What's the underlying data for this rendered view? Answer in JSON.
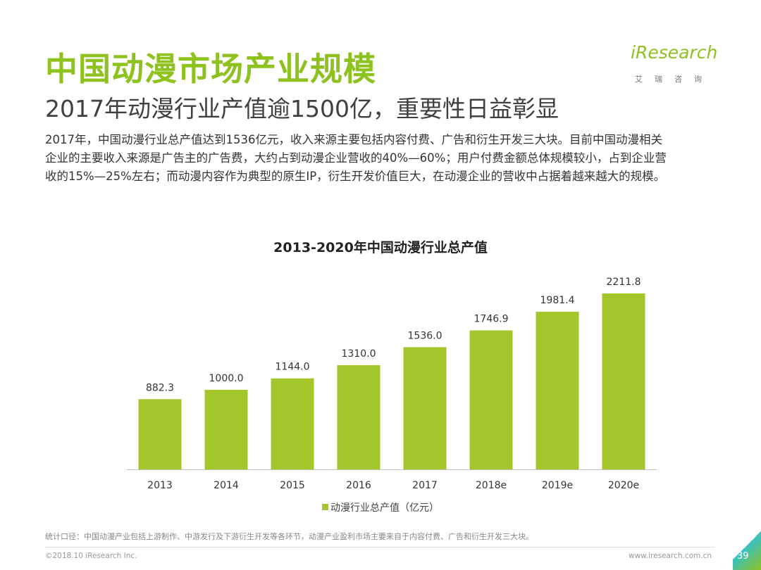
{
  "header": {
    "title": "中国动漫市场产业规模",
    "subtitle": "2017年动漫行业产值逾1500亿，重要性日益彰显"
  },
  "logo": {
    "text": "iResearch",
    "sub": "艾瑞咨询"
  },
  "body": {
    "lines": [
      "2017年，中国动漫行业总产值达到1536亿元，收入来源主要包括内容付费、广告和衍生开发三大块。目前中国动漫相关",
      "企业的主要收入来源是广告主的广告费，大约占到动漫企业营收的40%—60%；用户付费金额总体规模较小，占到企业营",
      "收的15%—25%左右；而动漫内容作为典型的原生IP，衍生开发价值巨大，在动漫企业的营收中占据着越来越大的规模。"
    ]
  },
  "chart_data": {
    "type": "bar",
    "title": "2013-2020年中国动漫行业总产值",
    "categories": [
      "2013",
      "2014",
      "2015",
      "2016",
      "2017",
      "2018e",
      "2019e",
      "2020e"
    ],
    "series": [
      {
        "name": "动漫行业总产值（亿元）",
        "values": [
          882.3,
          1000.0,
          1144.0,
          1310.0,
          1536.0,
          1746.9,
          1981.4,
          2211.8
        ],
        "labels": [
          "882.3",
          "1000.0",
          "1144.0",
          "1310.0",
          "1536.0",
          "1746.9",
          "1981.4",
          "2211.8"
        ],
        "color": "#a3c62a"
      }
    ],
    "xlabel": "",
    "ylabel": "",
    "ylim": [
      0,
      2211.8
    ],
    "grid": false,
    "legend": "bottom"
  },
  "footnote": "统计口径：中国动漫产业包括上游制作、中游发行及下游衍生开发等各环节，动漫产业盈利市场主要来自于内容付费、广告和衍生开发三大块。",
  "footer": {
    "copyright": "©2018.10 iResearch Inc.",
    "url": "www.iresearch.com.cn",
    "page": "39"
  },
  "colors": {
    "accent": "#8dc21f",
    "bar": "#a3c62a",
    "teal": "#39c0c4"
  }
}
